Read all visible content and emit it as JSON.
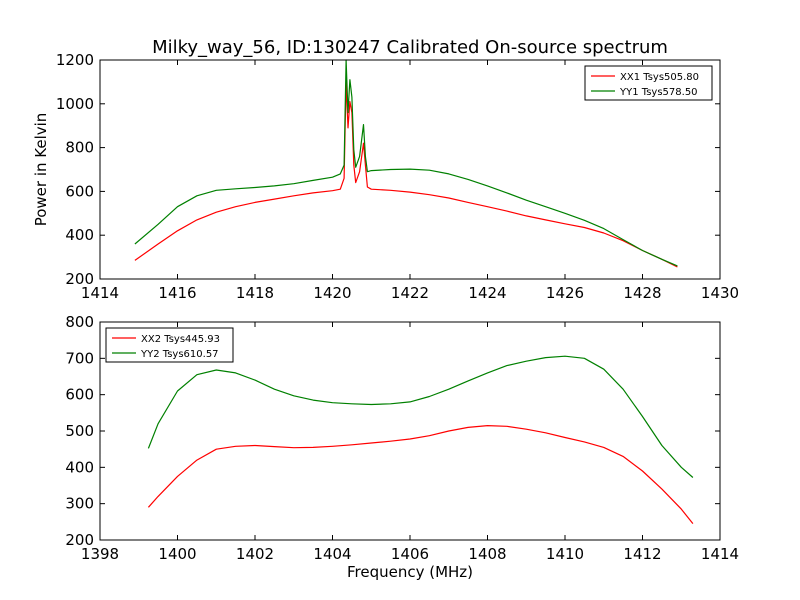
{
  "figure": {
    "title": "Milky_way_56, ID:130247 Calibrated On-source spectrum",
    "xlabel": "Frequency (MHz)"
  },
  "chart_data": [
    {
      "type": "line",
      "title": "Milky_way_56, ID:130247 Calibrated On-source spectrum",
      "xlabel": "",
      "ylabel": "Power in Kelvin",
      "xlim": [
        1414,
        1430
      ],
      "ylim": [
        200,
        1200
      ],
      "xticks": [
        1414,
        1416,
        1418,
        1420,
        1422,
        1424,
        1426,
        1428,
        1430
      ],
      "yticks": [
        200,
        400,
        600,
        800,
        1000,
        1200
      ],
      "grid": false,
      "legend": "top-right",
      "series": [
        {
          "name": "XX1 Tsys505.80",
          "color": "#ff0000",
          "x": [
            1414.9,
            1415.5,
            1416.0,
            1416.5,
            1417.0,
            1417.5,
            1418.0,
            1418.5,
            1419.0,
            1419.5,
            1420.0,
            1420.2,
            1420.3,
            1420.35,
            1420.4,
            1420.45,
            1420.5,
            1420.55,
            1420.6,
            1420.7,
            1420.8,
            1420.85,
            1420.9,
            1421.0,
            1421.5,
            1422.0,
            1422.5,
            1423.0,
            1423.5,
            1424.0,
            1424.5,
            1425.0,
            1425.5,
            1426.0,
            1426.5,
            1427.0,
            1427.5,
            1428.0,
            1428.5,
            1428.9
          ],
          "values": [
            285,
            360,
            420,
            470,
            505,
            530,
            550,
            565,
            580,
            593,
            603,
            610,
            660,
            1100,
            890,
            1010,
            960,
            720,
            640,
            690,
            820,
            720,
            620,
            610,
            605,
            597,
            585,
            570,
            550,
            530,
            510,
            488,
            470,
            452,
            435,
            410,
            375,
            330,
            290,
            255
          ]
        },
        {
          "name": "YY1 Tsys578.50",
          "color": "#008000",
          "x": [
            1414.9,
            1415.5,
            1416.0,
            1416.5,
            1417.0,
            1417.5,
            1418.0,
            1418.5,
            1419.0,
            1419.5,
            1420.0,
            1420.2,
            1420.3,
            1420.35,
            1420.4,
            1420.45,
            1420.5,
            1420.55,
            1420.6,
            1420.7,
            1420.8,
            1420.85,
            1420.9,
            1421.0,
            1421.5,
            1422.0,
            1422.5,
            1423.0,
            1423.5,
            1424.0,
            1424.5,
            1425.0,
            1425.5,
            1426.0,
            1426.5,
            1427.0,
            1427.5,
            1428.0,
            1428.5,
            1428.9
          ],
          "values": [
            360,
            450,
            530,
            580,
            605,
            612,
            618,
            625,
            635,
            650,
            665,
            680,
            720,
            1200,
            960,
            1110,
            1030,
            790,
            710,
            760,
            905,
            760,
            690,
            695,
            700,
            702,
            697,
            680,
            655,
            625,
            593,
            560,
            530,
            500,
            468,
            430,
            380,
            330,
            290,
            260
          ]
        }
      ]
    },
    {
      "type": "line",
      "title": "",
      "xlabel": "Frequency (MHz)",
      "ylabel": "",
      "xlim": [
        1398,
        1414
      ],
      "ylim": [
        200,
        800
      ],
      "xticks": [
        1398,
        1400,
        1402,
        1404,
        1406,
        1408,
        1410,
        1412,
        1414
      ],
      "yticks": [
        200,
        300,
        400,
        500,
        600,
        700,
        800
      ],
      "grid": false,
      "legend": "top-left",
      "series": [
        {
          "name": "XX2 Tsys445.93",
          "color": "#ff0000",
          "x": [
            1399.25,
            1399.5,
            1400.0,
            1400.5,
            1401.0,
            1401.5,
            1402.0,
            1402.5,
            1403.0,
            1403.5,
            1404.0,
            1404.5,
            1405.0,
            1405.5,
            1406.0,
            1406.5,
            1407.0,
            1407.5,
            1408.0,
            1408.5,
            1409.0,
            1409.5,
            1410.0,
            1410.5,
            1411.0,
            1411.5,
            1412.0,
            1412.5,
            1413.0,
            1413.3
          ],
          "values": [
            290,
            320,
            375,
            420,
            450,
            458,
            460,
            457,
            454,
            455,
            458,
            462,
            467,
            472,
            478,
            487,
            500,
            510,
            515,
            513,
            505,
            495,
            482,
            470,
            455,
            430,
            390,
            340,
            285,
            245
          ]
        },
        {
          "name": "YY2 Tsys610.57",
          "color": "#008000",
          "x": [
            1399.25,
            1399.5,
            1400.0,
            1400.5,
            1401.0,
            1401.5,
            1402.0,
            1402.5,
            1403.0,
            1403.5,
            1404.0,
            1404.5,
            1405.0,
            1405.5,
            1406.0,
            1406.5,
            1407.0,
            1407.5,
            1408.0,
            1408.5,
            1409.0,
            1409.5,
            1410.0,
            1410.5,
            1411.0,
            1411.5,
            1412.0,
            1412.5,
            1413.0,
            1413.3
          ],
          "values": [
            452,
            520,
            610,
            655,
            668,
            660,
            640,
            615,
            597,
            585,
            578,
            575,
            573,
            575,
            580,
            595,
            615,
            638,
            660,
            680,
            692,
            702,
            706,
            700,
            670,
            615,
            540,
            460,
            400,
            372
          ]
        }
      ]
    }
  ]
}
